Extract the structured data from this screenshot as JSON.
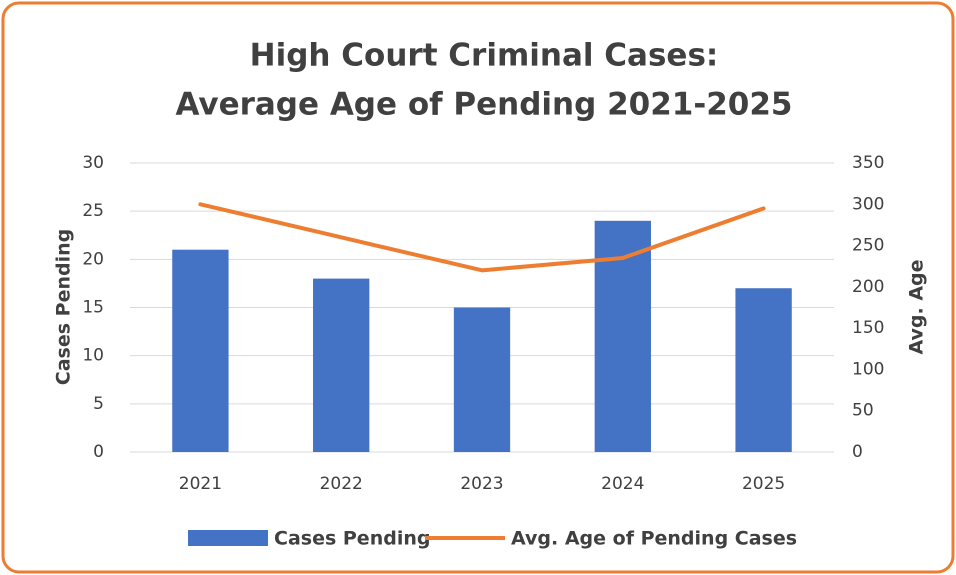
{
  "chart_data": {
    "type": "bar_line",
    "title": [
      "High Court Criminal Cases:",
      "Average Age of Pending 2021-2025"
    ],
    "y_label": "Cases Pending",
    "y2_label": "Avg. Age",
    "categories": [
      "2021",
      "2022",
      "2023",
      "2024",
      "2025"
    ],
    "series": [
      {
        "name": "Cases Pending",
        "type": "bar",
        "color": "#4472c4",
        "values": [
          21,
          18,
          15,
          24,
          17
        ]
      },
      {
        "name": "Avg. Age of Pending Cases",
        "type": "line",
        "axis": "y2",
        "color": "#ed7d31",
        "values": [
          300,
          260,
          220,
          235,
          295
        ]
      }
    ],
    "ylim": [
      0,
      30
    ],
    "yticks": [
      0,
      5,
      10,
      15,
      20,
      25,
      30
    ],
    "y2lim": [
      0,
      350
    ],
    "y2ticks": [
      0,
      50,
      100,
      150,
      200,
      250,
      300,
      350
    ],
    "grid": true,
    "legend": "bottom"
  }
}
